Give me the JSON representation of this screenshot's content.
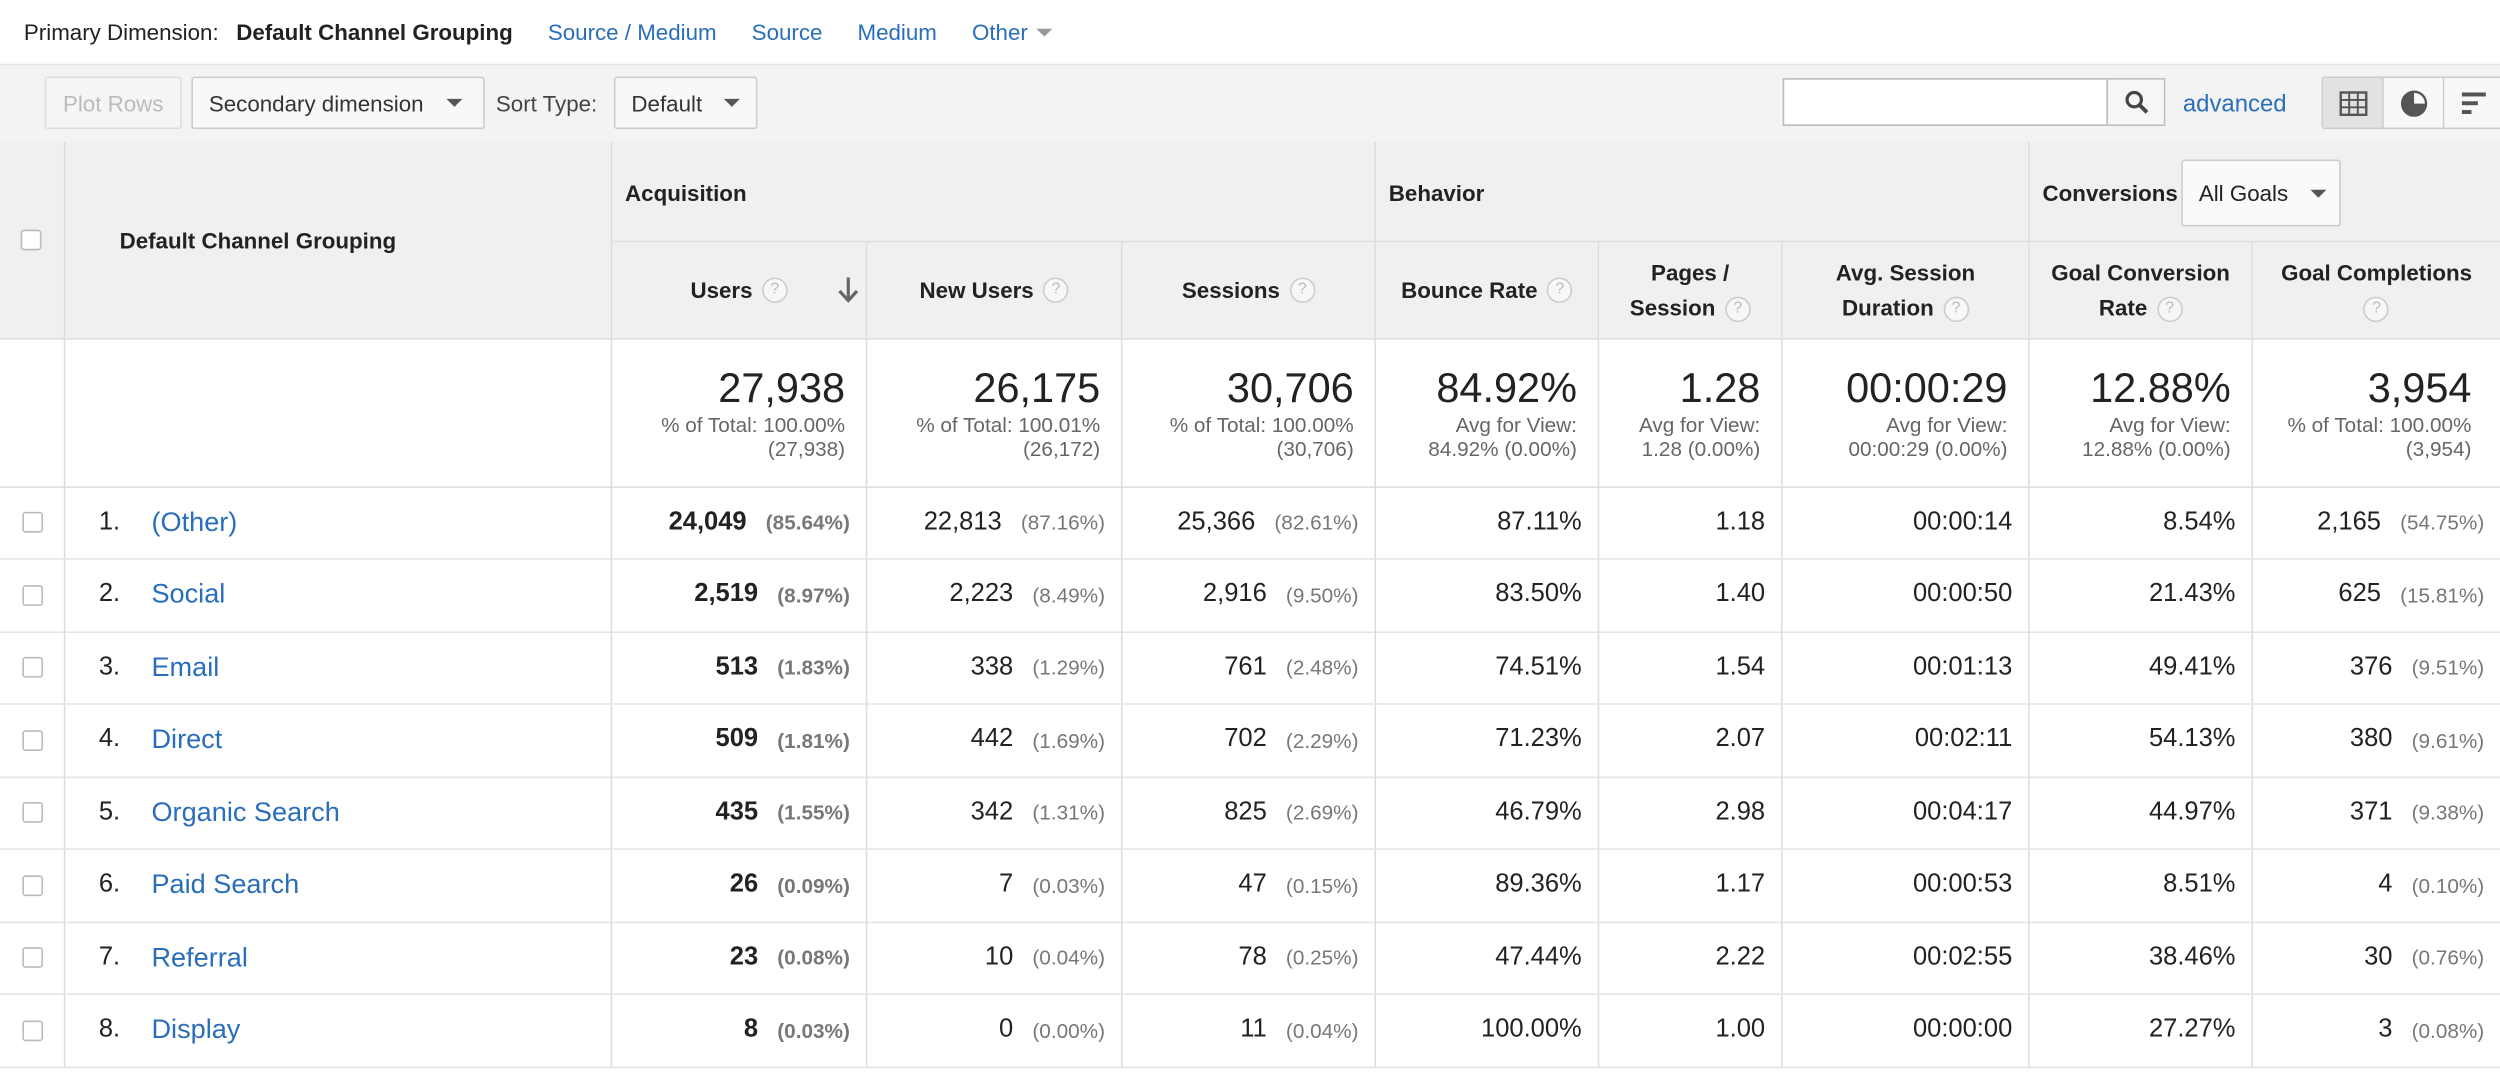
{
  "primary_dimension": {
    "label": "Primary Dimension:",
    "current": "Default Channel Grouping",
    "links": [
      "Source / Medium",
      "Source",
      "Medium"
    ],
    "other": "Other"
  },
  "toolbar": {
    "plot_rows": "Plot Rows",
    "secondary_dimension": "Secondary dimension",
    "sort_type_label": "Sort Type:",
    "sort_type_value": "Default",
    "search_value": "",
    "advanced": "advanced"
  },
  "table": {
    "groups": {
      "acquisition": "Acquisition",
      "behavior": "Behavior",
      "conversions": "Conversions",
      "goals_select": "All Goals"
    },
    "dimension_header": "Default Channel Grouping",
    "columns": {
      "users": "Users",
      "new_users": "New Users",
      "sessions": "Sessions",
      "bounce_rate": "Bounce Rate",
      "pages_session_1": "Pages /",
      "pages_session_2": "Session",
      "avg_duration_1": "Avg. Session",
      "avg_duration_2": "Duration",
      "goal_conv_1": "Goal Conversion",
      "goal_conv_2": "Rate",
      "goal_comp": "Goal Completions"
    },
    "totals": {
      "users": {
        "value": "27,938",
        "line1": "% of Total: 100.00%",
        "line2": "(27,938)"
      },
      "new_users": {
        "value": "26,175",
        "line1": "% of Total: 100.01%",
        "line2": "(26,172)"
      },
      "sessions": {
        "value": "30,706",
        "line1": "% of Total: 100.00%",
        "line2": "(30,706)"
      },
      "bounce_rate": {
        "value": "84.92%",
        "line1": "Avg for View:",
        "line2": "84.92% (0.00%)"
      },
      "pages_session": {
        "value": "1.28",
        "line1": "Avg for View:",
        "line2": "1.28 (0.00%)"
      },
      "avg_duration": {
        "value": "00:00:29",
        "line1": "Avg for View:",
        "line2": "00:00:29 (0.00%)"
      },
      "goal_conv": {
        "value": "12.88%",
        "line1": "Avg for View:",
        "line2": "12.88% (0.00%)"
      },
      "goal_comp": {
        "value": "3,954",
        "line1": "% of Total: 100.00%",
        "line2": "(3,954)"
      }
    },
    "rows": [
      {
        "num": "1.",
        "name": "(Other)",
        "users": "24,049",
        "users_pct": "(85.64%)",
        "new_users": "22,813",
        "new_users_pct": "(87.16%)",
        "sessions": "25,366",
        "sessions_pct": "(82.61%)",
        "bounce": "87.11%",
        "pages": "1.18",
        "duration": "00:00:14",
        "conv": "8.54%",
        "comp": "2,165",
        "comp_pct": "(54.75%)"
      },
      {
        "num": "2.",
        "name": "Social",
        "users": "2,519",
        "users_pct": "(8.97%)",
        "new_users": "2,223",
        "new_users_pct": "(8.49%)",
        "sessions": "2,916",
        "sessions_pct": "(9.50%)",
        "bounce": "83.50%",
        "pages": "1.40",
        "duration": "00:00:50",
        "conv": "21.43%",
        "comp": "625",
        "comp_pct": "(15.81%)"
      },
      {
        "num": "3.",
        "name": "Email",
        "users": "513",
        "users_pct": "(1.83%)",
        "new_users": "338",
        "new_users_pct": "(1.29%)",
        "sessions": "761",
        "sessions_pct": "(2.48%)",
        "bounce": "74.51%",
        "pages": "1.54",
        "duration": "00:01:13",
        "conv": "49.41%",
        "comp": "376",
        "comp_pct": "(9.51%)"
      },
      {
        "num": "4.",
        "name": "Direct",
        "users": "509",
        "users_pct": "(1.81%)",
        "new_users": "442",
        "new_users_pct": "(1.69%)",
        "sessions": "702",
        "sessions_pct": "(2.29%)",
        "bounce": "71.23%",
        "pages": "2.07",
        "duration": "00:02:11",
        "conv": "54.13%",
        "comp": "380",
        "comp_pct": "(9.61%)"
      },
      {
        "num": "5.",
        "name": "Organic Search",
        "users": "435",
        "users_pct": "(1.55%)",
        "new_users": "342",
        "new_users_pct": "(1.31%)",
        "sessions": "825",
        "sessions_pct": "(2.69%)",
        "bounce": "46.79%",
        "pages": "2.98",
        "duration": "00:04:17",
        "conv": "44.97%",
        "comp": "371",
        "comp_pct": "(9.38%)"
      },
      {
        "num": "6.",
        "name": "Paid Search",
        "users": "26",
        "users_pct": "(0.09%)",
        "new_users": "7",
        "new_users_pct": "(0.03%)",
        "sessions": "47",
        "sessions_pct": "(0.15%)",
        "bounce": "89.36%",
        "pages": "1.17",
        "duration": "00:00:53",
        "conv": "8.51%",
        "comp": "4",
        "comp_pct": "(0.10%)"
      },
      {
        "num": "7.",
        "name": "Referral",
        "users": "23",
        "users_pct": "(0.08%)",
        "new_users": "10",
        "new_users_pct": "(0.04%)",
        "sessions": "78",
        "sessions_pct": "(0.25%)",
        "bounce": "47.44%",
        "pages": "2.22",
        "duration": "00:02:55",
        "conv": "38.46%",
        "comp": "30",
        "comp_pct": "(0.76%)"
      },
      {
        "num": "8.",
        "name": "Display",
        "users": "8",
        "users_pct": "(0.03%)",
        "new_users": "0",
        "new_users_pct": "(0.00%)",
        "sessions": "11",
        "sessions_pct": "(0.04%)",
        "bounce": "100.00%",
        "pages": "1.00",
        "duration": "00:00:00",
        "conv": "27.27%",
        "comp": "3",
        "comp_pct": "(0.08%)"
      }
    ]
  }
}
